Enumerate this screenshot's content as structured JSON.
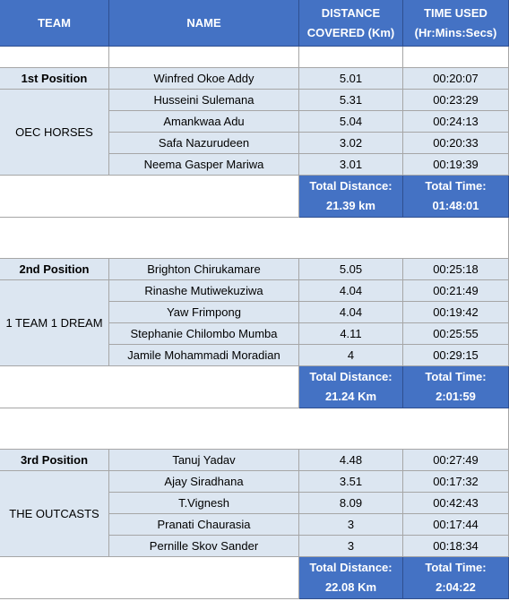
{
  "header": {
    "team": "TEAM",
    "name": "NAME",
    "distance": "DISTANCE COVERED (Km)",
    "time": "TIME USED (Hr:Mins:Secs)"
  },
  "teams": [
    {
      "position": "1st Position",
      "team": "OEC HORSES",
      "members": [
        {
          "name": "Winfred Okoe Addy",
          "distance": "5.01",
          "time": "00:20:07"
        },
        {
          "name": "Husseini Sulemana",
          "distance": "5.31",
          "time": "00:23:29"
        },
        {
          "name": "Amankwaa Adu",
          "distance": "5.04",
          "time": "00:24:13"
        },
        {
          "name": "Safa Nazurudeen",
          "distance": "3.02",
          "time": "00:20:33"
        },
        {
          "name": "Neema Gasper Mariwa",
          "distance": "3.01",
          "time": "00:19:39"
        }
      ],
      "total_distance_label": "Total Distance:",
      "total_distance": "21.39 km",
      "total_time_label": "Total Time:",
      "total_time": "01:48:01"
    },
    {
      "position": "2nd Position",
      "team": "1 TEAM 1 DREAM",
      "members": [
        {
          "name": "Brighton Chirukamare",
          "distance": "5.05",
          "time": "00:25:18"
        },
        {
          "name": "Rinashe Mutiwekuziwa",
          "distance": "4.04",
          "time": "00:21:49"
        },
        {
          "name": "Yaw Frimpong",
          "distance": "4.04",
          "time": "00:19:42"
        },
        {
          "name": "Stephanie Chilombo Mumba",
          "distance": "4.11",
          "time": "00:25:55"
        },
        {
          "name": "Jamile Mohammadi Moradian",
          "distance": "4",
          "time": "00:29:15"
        }
      ],
      "total_distance_label": "Total Distance:",
      "total_distance": "21.24 Km",
      "total_time_label": "Total Time:",
      "total_time": "2:01:59"
    },
    {
      "position": "3rd Position",
      "team": "THE OUTCASTS",
      "members": [
        {
          "name": "Tanuj Yadav",
          "distance": "4.48",
          "time": "00:27:49"
        },
        {
          "name": "Ajay Siradhana",
          "distance": "3.51",
          "time": "00:17:32"
        },
        {
          "name": "T.Vignesh",
          "distance": "8.09",
          "time": "00:42:43"
        },
        {
          "name": "Pranati Chaurasia",
          "distance": "3",
          "time": "00:17:44"
        },
        {
          "name": "Pernille Skov Sander",
          "distance": "3",
          "time": "00:18:34"
        }
      ],
      "total_distance_label": "Total Distance:",
      "total_distance": "22.08 Km",
      "total_time_label": "Total Time:",
      "total_time": "2:04:22"
    }
  ]
}
